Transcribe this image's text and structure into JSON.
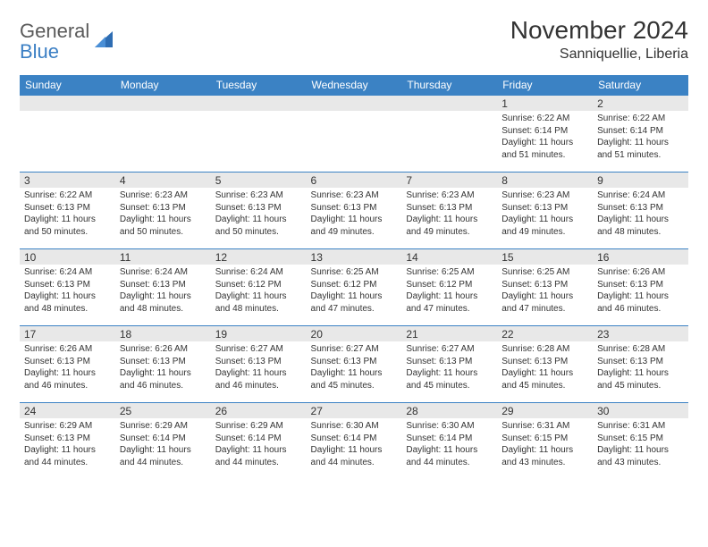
{
  "logo": {
    "text1": "General",
    "text2": "Blue"
  },
  "title": "November 2024",
  "location": "Sanniquellie, Liberia",
  "colors": {
    "header_bg": "#3b82c4",
    "header_text": "#ffffff",
    "stripe_bg": "#e8e8e8",
    "text": "#333333",
    "border": "#3b82c4",
    "logo_gray": "#5a5a5a",
    "logo_blue": "#3b7fc4"
  },
  "day_headers": [
    "Sunday",
    "Monday",
    "Tuesday",
    "Wednesday",
    "Thursday",
    "Friday",
    "Saturday"
  ],
  "weeks": [
    [
      {
        "n": "",
        "sr": "",
        "ss": "",
        "dl": ""
      },
      {
        "n": "",
        "sr": "",
        "ss": "",
        "dl": ""
      },
      {
        "n": "",
        "sr": "",
        "ss": "",
        "dl": ""
      },
      {
        "n": "",
        "sr": "",
        "ss": "",
        "dl": ""
      },
      {
        "n": "",
        "sr": "",
        "ss": "",
        "dl": ""
      },
      {
        "n": "1",
        "sr": "Sunrise: 6:22 AM",
        "ss": "Sunset: 6:14 PM",
        "dl": "Daylight: 11 hours and 51 minutes."
      },
      {
        "n": "2",
        "sr": "Sunrise: 6:22 AM",
        "ss": "Sunset: 6:14 PM",
        "dl": "Daylight: 11 hours and 51 minutes."
      }
    ],
    [
      {
        "n": "3",
        "sr": "Sunrise: 6:22 AM",
        "ss": "Sunset: 6:13 PM",
        "dl": "Daylight: 11 hours and 50 minutes."
      },
      {
        "n": "4",
        "sr": "Sunrise: 6:23 AM",
        "ss": "Sunset: 6:13 PM",
        "dl": "Daylight: 11 hours and 50 minutes."
      },
      {
        "n": "5",
        "sr": "Sunrise: 6:23 AM",
        "ss": "Sunset: 6:13 PM",
        "dl": "Daylight: 11 hours and 50 minutes."
      },
      {
        "n": "6",
        "sr": "Sunrise: 6:23 AM",
        "ss": "Sunset: 6:13 PM",
        "dl": "Daylight: 11 hours and 49 minutes."
      },
      {
        "n": "7",
        "sr": "Sunrise: 6:23 AM",
        "ss": "Sunset: 6:13 PM",
        "dl": "Daylight: 11 hours and 49 minutes."
      },
      {
        "n": "8",
        "sr": "Sunrise: 6:23 AM",
        "ss": "Sunset: 6:13 PM",
        "dl": "Daylight: 11 hours and 49 minutes."
      },
      {
        "n": "9",
        "sr": "Sunrise: 6:24 AM",
        "ss": "Sunset: 6:13 PM",
        "dl": "Daylight: 11 hours and 48 minutes."
      }
    ],
    [
      {
        "n": "10",
        "sr": "Sunrise: 6:24 AM",
        "ss": "Sunset: 6:13 PM",
        "dl": "Daylight: 11 hours and 48 minutes."
      },
      {
        "n": "11",
        "sr": "Sunrise: 6:24 AM",
        "ss": "Sunset: 6:13 PM",
        "dl": "Daylight: 11 hours and 48 minutes."
      },
      {
        "n": "12",
        "sr": "Sunrise: 6:24 AM",
        "ss": "Sunset: 6:12 PM",
        "dl": "Daylight: 11 hours and 48 minutes."
      },
      {
        "n": "13",
        "sr": "Sunrise: 6:25 AM",
        "ss": "Sunset: 6:12 PM",
        "dl": "Daylight: 11 hours and 47 minutes."
      },
      {
        "n": "14",
        "sr": "Sunrise: 6:25 AM",
        "ss": "Sunset: 6:12 PM",
        "dl": "Daylight: 11 hours and 47 minutes."
      },
      {
        "n": "15",
        "sr": "Sunrise: 6:25 AM",
        "ss": "Sunset: 6:13 PM",
        "dl": "Daylight: 11 hours and 47 minutes."
      },
      {
        "n": "16",
        "sr": "Sunrise: 6:26 AM",
        "ss": "Sunset: 6:13 PM",
        "dl": "Daylight: 11 hours and 46 minutes."
      }
    ],
    [
      {
        "n": "17",
        "sr": "Sunrise: 6:26 AM",
        "ss": "Sunset: 6:13 PM",
        "dl": "Daylight: 11 hours and 46 minutes."
      },
      {
        "n": "18",
        "sr": "Sunrise: 6:26 AM",
        "ss": "Sunset: 6:13 PM",
        "dl": "Daylight: 11 hours and 46 minutes."
      },
      {
        "n": "19",
        "sr": "Sunrise: 6:27 AM",
        "ss": "Sunset: 6:13 PM",
        "dl": "Daylight: 11 hours and 46 minutes."
      },
      {
        "n": "20",
        "sr": "Sunrise: 6:27 AM",
        "ss": "Sunset: 6:13 PM",
        "dl": "Daylight: 11 hours and 45 minutes."
      },
      {
        "n": "21",
        "sr": "Sunrise: 6:27 AM",
        "ss": "Sunset: 6:13 PM",
        "dl": "Daylight: 11 hours and 45 minutes."
      },
      {
        "n": "22",
        "sr": "Sunrise: 6:28 AM",
        "ss": "Sunset: 6:13 PM",
        "dl": "Daylight: 11 hours and 45 minutes."
      },
      {
        "n": "23",
        "sr": "Sunrise: 6:28 AM",
        "ss": "Sunset: 6:13 PM",
        "dl": "Daylight: 11 hours and 45 minutes."
      }
    ],
    [
      {
        "n": "24",
        "sr": "Sunrise: 6:29 AM",
        "ss": "Sunset: 6:13 PM",
        "dl": "Daylight: 11 hours and 44 minutes."
      },
      {
        "n": "25",
        "sr": "Sunrise: 6:29 AM",
        "ss": "Sunset: 6:14 PM",
        "dl": "Daylight: 11 hours and 44 minutes."
      },
      {
        "n": "26",
        "sr": "Sunrise: 6:29 AM",
        "ss": "Sunset: 6:14 PM",
        "dl": "Daylight: 11 hours and 44 minutes."
      },
      {
        "n": "27",
        "sr": "Sunrise: 6:30 AM",
        "ss": "Sunset: 6:14 PM",
        "dl": "Daylight: 11 hours and 44 minutes."
      },
      {
        "n": "28",
        "sr": "Sunrise: 6:30 AM",
        "ss": "Sunset: 6:14 PM",
        "dl": "Daylight: 11 hours and 44 minutes."
      },
      {
        "n": "29",
        "sr": "Sunrise: 6:31 AM",
        "ss": "Sunset: 6:15 PM",
        "dl": "Daylight: 11 hours and 43 minutes."
      },
      {
        "n": "30",
        "sr": "Sunrise: 6:31 AM",
        "ss": "Sunset: 6:15 PM",
        "dl": "Daylight: 11 hours and 43 minutes."
      }
    ]
  ]
}
